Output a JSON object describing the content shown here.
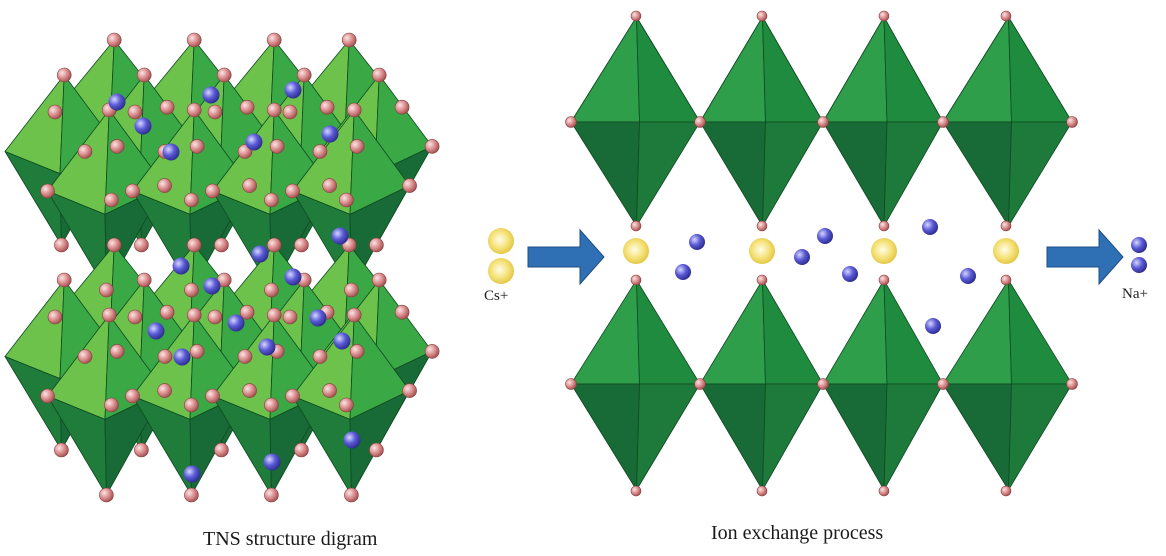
{
  "left_panel": {
    "caption": "TNS structure digram"
  },
  "right_panel": {
    "caption": "Ion exchange process",
    "incoming_ion_label": "Cs+",
    "outgoing_ion_label": "Na+"
  },
  "colors": {
    "octahedron_light": "#6cc24a",
    "octahedron_mid": "#2e9e4a",
    "octahedron_dark": "#186b36",
    "oxygen_atom": "#d98a8a",
    "sodium_ion": "#5a5ad6",
    "cesium_ion": "#f5e27a",
    "arrow": "#2f6fb3"
  }
}
